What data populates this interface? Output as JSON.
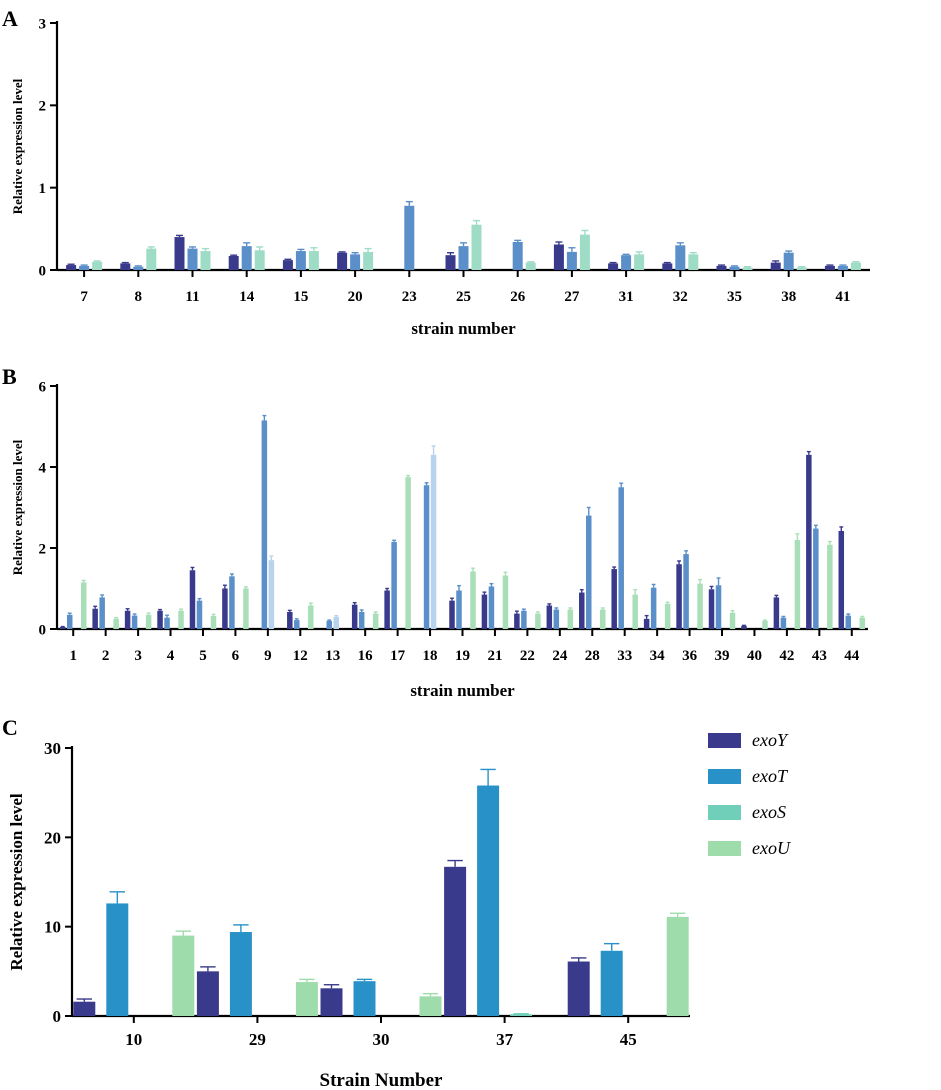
{
  "figure": {
    "panel_labels": [
      "A",
      "B",
      "C"
    ]
  },
  "colors": {
    "A": [
      "#3a3a8c",
      "#5b8fc9",
      "#9fdcc6"
    ],
    "B": [
      "#3a3a8c",
      "#5b8fc9",
      "#b8d3ec",
      "#a9dfb8"
    ],
    "C": [
      "#3a3a8c",
      "#2892c8",
      "#6fcfb9",
      "#9fdcac"
    ]
  },
  "chart_data": [
    {
      "panel": "A",
      "type": "bar",
      "title": "",
      "xlabel": "strain number",
      "ylabel": "Relative expression level",
      "ylim": [
        0,
        3
      ],
      "yticks": [
        "0",
        "1",
        "2",
        "3"
      ],
      "categories": [
        "7",
        "8",
        "11",
        "14",
        "15",
        "20",
        "23",
        "25",
        "26",
        "27",
        "31",
        "32",
        "35",
        "38",
        "41"
      ],
      "series": [
        {
          "name": "exoY",
          "values": [
            0.06,
            0.08,
            0.4,
            0.17,
            0.12,
            0.21,
            null,
            0.18,
            null,
            0.31,
            0.08,
            0.08,
            0.05,
            0.09,
            0.05
          ]
        },
        {
          "name": "exoT",
          "values": [
            0.05,
            0.04,
            0.26,
            0.29,
            0.23,
            0.19,
            0.78,
            0.29,
            0.34,
            0.22,
            0.18,
            0.3,
            0.04,
            0.21,
            0.05
          ]
        },
        {
          "name": "exoS",
          "values": [
            0.1,
            0.26,
            0.23,
            0.24,
            0.23,
            0.22,
            null,
            0.55,
            0.09,
            0.43,
            0.19,
            0.19,
            0.03,
            0.03,
            0.09
          ]
        }
      ],
      "errors": [
        [
          0.01,
          0.01,
          0.02,
          0.01,
          0.01,
          0.01,
          null,
          0.03,
          null,
          0.03,
          0.01,
          0.01,
          0.01,
          0.02,
          0.01
        ],
        [
          0.01,
          0.01,
          0.02,
          0.04,
          0.02,
          0.02,
          0.05,
          0.04,
          0.02,
          0.05,
          0.01,
          0.03,
          0.01,
          0.02,
          0.01
        ],
        [
          0.01,
          0.02,
          0.03,
          0.04,
          0.04,
          0.04,
          null,
          0.05,
          0.01,
          0.05,
          0.03,
          0.02,
          0.01,
          0.01,
          0.01
        ]
      ]
    },
    {
      "panel": "B",
      "type": "bar",
      "title": "",
      "xlabel": "strain number",
      "ylabel": "Relative expression level",
      "ylim": [
        0,
        6
      ],
      "yticks": [
        "0",
        "2",
        "4",
        "6"
      ],
      "categories": [
        "1",
        "2",
        "3",
        "4",
        "5",
        "6",
        "9",
        "12",
        "13",
        "16",
        "17",
        "18",
        "19",
        "21",
        "22",
        "24",
        "28",
        "33",
        "34",
        "36",
        "39",
        "40",
        "42",
        "43",
        "44"
      ],
      "series": [
        {
          "name": "exoY",
          "values": [
            0.05,
            0.5,
            0.45,
            0.45,
            1.45,
            1.0,
            null,
            0.42,
            null,
            0.6,
            0.95,
            null,
            0.7,
            0.85,
            0.38,
            0.58,
            0.9,
            1.48,
            0.25,
            1.6,
            0.98,
            0.08,
            0.78,
            4.3,
            2.42
          ]
        },
        {
          "name": "exoT",
          "values": [
            0.35,
            0.78,
            0.33,
            0.28,
            0.7,
            1.3,
            5.15,
            0.22,
            0.2,
            0.42,
            2.15,
            3.55,
            0.95,
            1.05,
            0.45,
            0.48,
            2.8,
            3.5,
            1.02,
            1.85,
            1.08,
            null,
            0.28,
            2.48,
            0.33
          ]
        },
        {
          "name": "exoS",
          "values": [
            null,
            null,
            null,
            null,
            null,
            null,
            1.7,
            null,
            0.3,
            null,
            null,
            4.3,
            null,
            null,
            null,
            null,
            null,
            null,
            null,
            null,
            null,
            null,
            null,
            null,
            null
          ]
        },
        {
          "name": "exoU",
          "values": [
            1.15,
            0.25,
            0.35,
            0.45,
            0.32,
            1.0,
            null,
            0.58,
            null,
            0.38,
            3.75,
            null,
            1.42,
            1.32,
            0.38,
            0.48,
            0.48,
            0.85,
            0.62,
            1.12,
            0.4,
            0.2,
            2.2,
            2.08,
            0.28
          ]
        }
      ],
      "errors": [
        [
          0.01,
          0.06,
          0.05,
          0.03,
          0.07,
          0.08,
          null,
          0.04,
          null,
          0.05,
          0.05,
          null,
          0.06,
          0.06,
          0.06,
          0.04,
          0.07,
          0.05,
          0.08,
          0.08,
          0.07,
          0.01,
          0.05,
          0.08,
          0.1
        ],
        [
          0.04,
          0.06,
          0.04,
          0.06,
          0.05,
          0.06,
          0.12,
          0.03,
          0.02,
          0.05,
          0.04,
          0.06,
          0.12,
          0.07,
          0.04,
          0.04,
          0.2,
          0.1,
          0.08,
          0.08,
          0.18,
          null,
          0.03,
          0.08,
          0.04
        ],
        [
          null,
          null,
          null,
          null,
          null,
          null,
          0.1,
          null,
          0.03,
          null,
          null,
          0.22,
          null,
          null,
          null,
          null,
          null,
          null,
          null,
          null,
          null,
          null,
          null,
          null,
          null
        ],
        [
          0.05,
          0.03,
          0.04,
          0.04,
          0.04,
          0.04,
          null,
          0.06,
          null,
          0.04,
          0.04,
          null,
          0.08,
          0.08,
          0.04,
          0.04,
          0.04,
          0.12,
          0.04,
          0.1,
          0.05,
          0.02,
          0.15,
          0.08,
          0.03
        ]
      ]
    },
    {
      "panel": "C",
      "type": "bar",
      "title": "",
      "xlabel": "Strain Number",
      "ylabel": "Relative expression level",
      "ylim": [
        0,
        30
      ],
      "yticks": [
        "0",
        "10",
        "20",
        "30"
      ],
      "categories": [
        "10",
        "29",
        "30",
        "37",
        "45"
      ],
      "series": [
        {
          "name": "exoY",
          "values": [
            1.6,
            5.0,
            3.1,
            16.7,
            6.1
          ]
        },
        {
          "name": "exoT",
          "values": [
            12.6,
            9.4,
            3.9,
            25.8,
            7.3
          ]
        },
        {
          "name": "exoS",
          "values": [
            null,
            null,
            null,
            0.2,
            null
          ]
        },
        {
          "name": "exoU",
          "values": [
            9.0,
            3.8,
            2.2,
            null,
            11.1
          ]
        }
      ],
      "errors": [
        [
          0.3,
          0.5,
          0.4,
          0.7,
          0.4
        ],
        [
          1.3,
          0.8,
          0.2,
          1.8,
          0.8
        ],
        [
          null,
          null,
          null,
          0.05,
          null
        ],
        [
          0.5,
          0.3,
          0.3,
          null,
          0.4
        ]
      ],
      "legend": {
        "position": "right",
        "entries": [
          "exoY",
          "exoT",
          "exoS",
          "exoU"
        ]
      }
    }
  ]
}
